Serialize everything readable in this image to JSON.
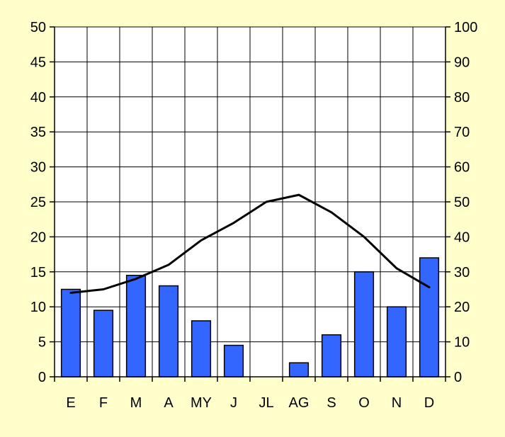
{
  "chart_data": {
    "type": "bar+line",
    "title": "",
    "categories": [
      "E",
      "F",
      "M",
      "A",
      "MY",
      "J",
      "JL",
      "AG",
      "S",
      "O",
      "N",
      "D"
    ],
    "series": [
      {
        "axis": "left",
        "type": "bar",
        "values": [
          12.5,
          9.5,
          14.5,
          13,
          8,
          4.5,
          0,
          2,
          6,
          15,
          10,
          17
        ]
      },
      {
        "axis": "right",
        "type": "line",
        "values": [
          12,
          12.5,
          14,
          16,
          19.5,
          22,
          25,
          26,
          23.5,
          20,
          15.5,
          12.8
        ]
      }
    ],
    "y_left": {
      "min": 0,
      "max": 50,
      "ticks": [
        "0",
        "5",
        "10",
        "15",
        "20",
        "25",
        "30",
        "35",
        "40",
        "45",
        "50"
      ]
    },
    "y_right": {
      "min": 0,
      "max": 100,
      "ticks": [
        "0",
        "10",
        "20",
        "30",
        "40",
        "50",
        "60",
        "70",
        "80",
        "90",
        "100"
      ]
    },
    "grid": true,
    "colors": {
      "background": "#ffffcc",
      "plot_area": "#ffffff",
      "bar_fill": "#3366ff",
      "bar_stroke": "#000000",
      "line": "#000000",
      "grid": "#000000"
    }
  }
}
